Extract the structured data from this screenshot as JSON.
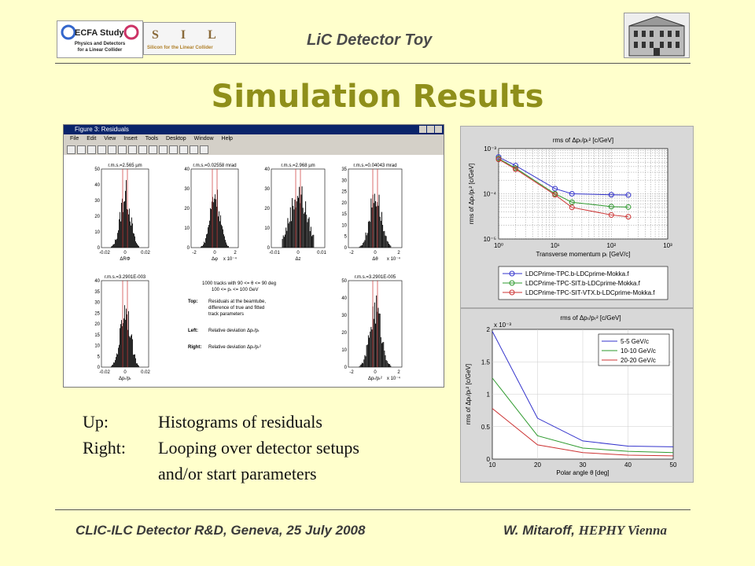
{
  "header": {
    "title": "LiC Detector Toy",
    "logo_ecfa_line1": "ECFA Study",
    "logo_ecfa_line2": "Physics and Detectors",
    "logo_ecfa_line3": "for a Linear Collider",
    "logo_silc": "S I L C",
    "logo_silc_sub": "Silicon for the Linear Collider"
  },
  "slide_title": "Simulation Results",
  "matlab": {
    "window_title": "Figure 3: Residuals",
    "menu": [
      "File",
      "Edit",
      "View",
      "Insert",
      "Tools",
      "Desktop",
      "Window",
      "Help"
    ],
    "panels": [
      {
        "rms": "r.m.s.=2.565 µm",
        "xlabel": "ΔRΦ",
        "ticks_y": [
          "50",
          "40",
          "30",
          "20",
          "10",
          "0"
        ],
        "ticks_x": [
          "-0.02",
          "0",
          "0.02"
        ],
        "scale": ""
      },
      {
        "rms": "r.m.s.=0.02558 mrad",
        "xlabel": "Δφ",
        "ticks_y": [
          "40",
          "30",
          "20",
          "10",
          "0"
        ],
        "ticks_x": [
          "-2",
          "0",
          "2"
        ],
        "scale": "x 10⁻⁴"
      },
      {
        "rms": "r.m.s.=2.968 µm",
        "xlabel": "Δz",
        "ticks_y": [
          "40",
          "30",
          "20",
          "10",
          "0"
        ],
        "ticks_x": [
          "-0.01",
          "0",
          "0.01"
        ],
        "scale": ""
      },
      {
        "rms": "r.m.s.=0.04043 mrad",
        "xlabel": "Δθ",
        "ticks_y": [
          "35",
          "30",
          "25",
          "20",
          "15",
          "10",
          "5",
          "0"
        ],
        "ticks_x": [
          "-2",
          "0",
          "2"
        ],
        "scale": "x 10⁻⁴"
      },
      {
        "rms": "r.m.s.=3.2901E-003",
        "xlabel": "Δpₜ/pₜ",
        "ticks_y": [
          "40",
          "35",
          "30",
          "25",
          "20",
          "15",
          "10",
          "5",
          "0"
        ],
        "ticks_x": [
          "-0.02",
          "0",
          "0.02"
        ],
        "scale": ""
      },
      {
        "rms": "r.m.s.=3.2901E-005",
        "xlabel": "Δpₜ/pₜ²",
        "ticks_y": [
          "50",
          "40",
          "30",
          "20",
          "10",
          "0"
        ],
        "ticks_x": [
          "-2",
          "0",
          "2"
        ],
        "scale": "x 10⁻⁴"
      }
    ],
    "info_line1": "1000 tracks with 90 <= θ <= 90 deg",
    "info_line2": "100 <= pₜ <= 100 GeV",
    "top_label": "Top:",
    "top_text1": "Residuals at the beamtube,",
    "top_text2": "difference of true and fitted",
    "top_text3": "track parameters",
    "left_label": "Left:",
    "left_text": "Relative deviation Δpₜ/pₜ",
    "right_label": "Right:",
    "right_text": "Relative deviation Δpₜ/pₜ²"
  },
  "chart_data": [
    {
      "type": "line",
      "title": "rms of Δpₜ/pₜ² [c/GeV]",
      "xlabel": "Transverse momentum pₜ [GeV/c]",
      "ylabel": "rms of Δpₜ/pₜ² [c/GeV]",
      "xscale": "log",
      "yscale": "log",
      "xlim": [
        1,
        1000
      ],
      "ylim": [
        1e-05,
        0.001
      ],
      "xticks": [
        "10⁰",
        "10¹",
        "10²",
        "10³"
      ],
      "yticks": [
        "10⁻³",
        "10⁻⁴",
        "10⁻⁵"
      ],
      "grid": true,
      "legend_position": "bottom",
      "x": [
        1,
        2,
        10,
        20,
        100,
        200
      ],
      "series": [
        {
          "name": "LDCPrime-TPC.b-LDCprime-Mokka.f",
          "color": "#3333cc",
          "values": [
            0.00065,
            0.00042,
            0.00013,
            0.0001,
            9.5e-05,
            9.4e-05
          ]
        },
        {
          "name": "LDCPrime-TPC-SIT.b-LDCprime-Mokka.f",
          "color": "#2e9a2e",
          "values": [
            0.0006,
            0.00037,
            0.0001,
            6.5e-05,
            5.2e-05,
            5.1e-05
          ]
        },
        {
          "name": "LDCPrime-TPC-SIT-VTX.b-LDCprime-Mokka.f",
          "color": "#cc3333",
          "values": [
            0.00058,
            0.00035,
            9.5e-05,
            5e-05,
            3.4e-05,
            3.1e-05
          ]
        }
      ]
    },
    {
      "type": "line",
      "title": "rms of Δpₜ/pₜ² [c/GeV]",
      "xlabel": "Polar angle θ [deg]",
      "ylabel": "rms of Δpₜ/pₜ² [c/GeV]",
      "yscale_label": "x 10⁻³",
      "xlim": [
        10,
        50
      ],
      "ylim": [
        0,
        2
      ],
      "xticks": [
        "10",
        "20",
        "30",
        "40",
        "50"
      ],
      "yticks": [
        "0",
        "0.5",
        "1",
        "1.5",
        "2"
      ],
      "grid": true,
      "legend_position": "top-right",
      "x": [
        10,
        20,
        30,
        40,
        50
      ],
      "series": [
        {
          "name": "5-5 GeV/c",
          "color": "#3333cc",
          "values": [
            1.97,
            0.63,
            0.28,
            0.2,
            0.19
          ]
        },
        {
          "name": "10-10 GeV/c",
          "color": "#2e9a2e",
          "values": [
            1.25,
            0.36,
            0.17,
            0.12,
            0.1
          ]
        },
        {
          "name": "20-20 GeV/c",
          "color": "#cc3333",
          "values": [
            0.78,
            0.22,
            0.1,
            0.06,
            0.05
          ]
        }
      ]
    }
  ],
  "description": {
    "up_label": "Up:",
    "up_text": "Histograms of residuals",
    "right_label": "Right:",
    "right_text1": "Looping over detector setups",
    "right_text2": "and/or start parameters"
  },
  "footer": {
    "left": "CLIC-ILC Detector R&D, Geneva, 25 July 2008",
    "author": "W. Mitaroff,",
    "institute": "HEPHY Vienna"
  }
}
